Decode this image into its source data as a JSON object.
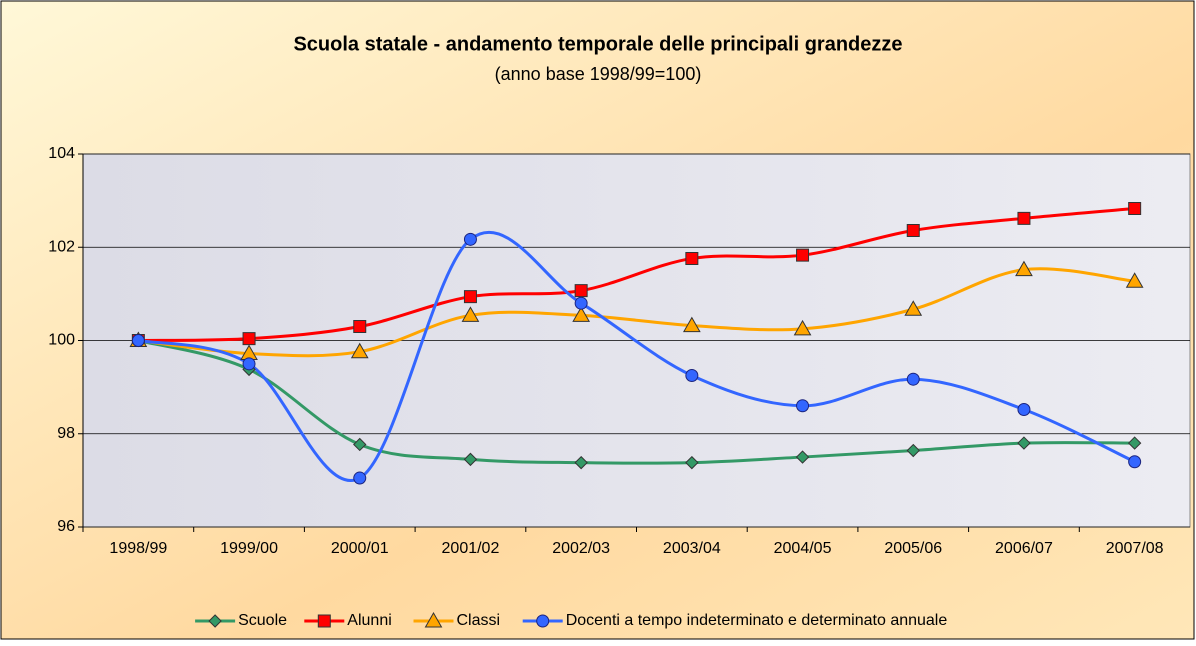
{
  "chart_data": {
    "type": "line",
    "title": "Scuola statale - andamento temporale delle principali grandezze",
    "subtitle": "(anno base 1998/99=100)",
    "categories": [
      "1998/99",
      "1999/00",
      "2000/01",
      "2001/02",
      "2002/03",
      "2003/04",
      "2004/05",
      "2005/06",
      "2006/07",
      "2007/08"
    ],
    "series": [
      {
        "name": "Scuole",
        "color": "#339966",
        "marker": "diamond",
        "values": [
          100,
          99.38,
          97.77,
          97.45,
          97.38,
          97.38,
          97.5,
          97.64,
          97.8,
          97.8
        ]
      },
      {
        "name": "Alunni",
        "color": "#ff0000",
        "marker": "square",
        "values": [
          100,
          100.04,
          100.3,
          100.94,
          101.07,
          101.76,
          101.83,
          102.36,
          102.62,
          102.83
        ]
      },
      {
        "name": "Classi",
        "color": "#ffa500",
        "marker": "triangle",
        "values": [
          100,
          99.72,
          99.76,
          100.54,
          100.54,
          100.32,
          100.25,
          100.67,
          101.52,
          101.27
        ]
      },
      {
        "name": "Docenti a tempo indeterminato e determinato annuale",
        "color": "#3366ff",
        "marker": "circle",
        "values": [
          100,
          99.5,
          97.05,
          102.17,
          100.8,
          99.25,
          98.6,
          99.17,
          98.52,
          97.4
        ]
      }
    ],
    "ylim": [
      96,
      104
    ],
    "yticks": [
      96,
      98,
      100,
      102,
      104
    ],
    "grid": true,
    "smooth": true,
    "legend": "bottom"
  }
}
